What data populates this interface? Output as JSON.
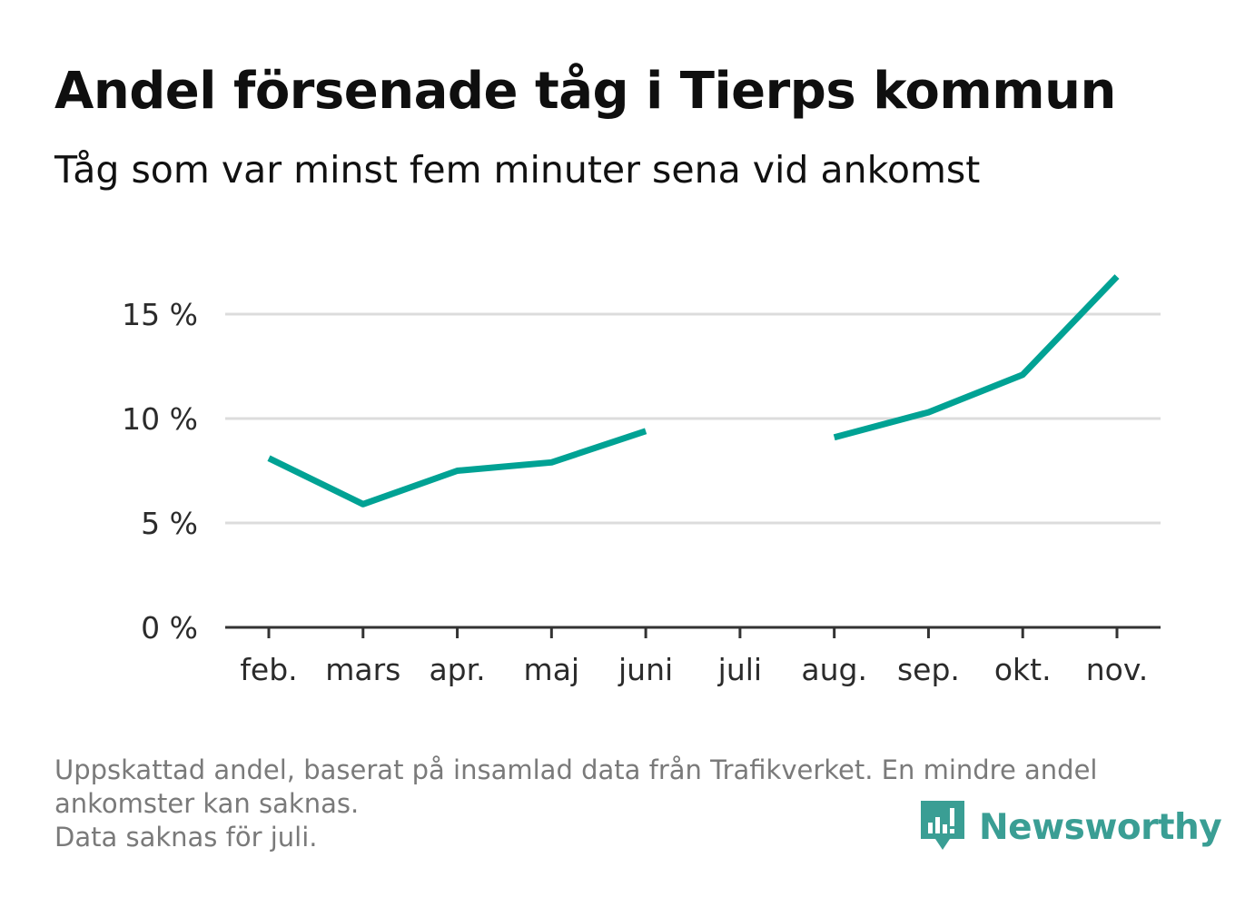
{
  "title": "Andel försenade tåg i Tierps kommun",
  "subtitle": "Tåg som var minst fem minuter sena vid ankomst",
  "footnote": {
    "line1": "Uppskattad andel, baserat på insamlad data från Trafikverket. En mindre andel",
    "line2": "ankomster kan saknas.",
    "line3": "Data saknas för juli."
  },
  "logo": {
    "text": "Newsworthy",
    "icon": "bar-chart-speech-bubble-icon"
  },
  "colors": {
    "line": "#00a294",
    "grid": "#dcdcdc",
    "axis": "#333333",
    "brand": "#3a9e94"
  },
  "chart_data": {
    "type": "line",
    "title": "Andel försenade tåg i Tierps kommun",
    "subtitle": "Tåg som var minst fem minuter sena vid ankomst",
    "xlabel": "",
    "ylabel": "",
    "categories": [
      "feb.",
      "mars",
      "apr.",
      "maj",
      "juni",
      "juli",
      "aug.",
      "sep.",
      "okt.",
      "nov."
    ],
    "series": [
      {
        "values": [
          8.1,
          5.9,
          7.5,
          7.9,
          9.4,
          null,
          9.1,
          10.3,
          12.1,
          16.8
        ]
      }
    ],
    "ylim": [
      0,
      17
    ],
    "yticks": [
      0,
      5,
      10,
      15
    ],
    "ytick_labels": [
      "0 %",
      "5 %",
      "10 %",
      "15 %"
    ],
    "grid": true,
    "legend": "none"
  }
}
